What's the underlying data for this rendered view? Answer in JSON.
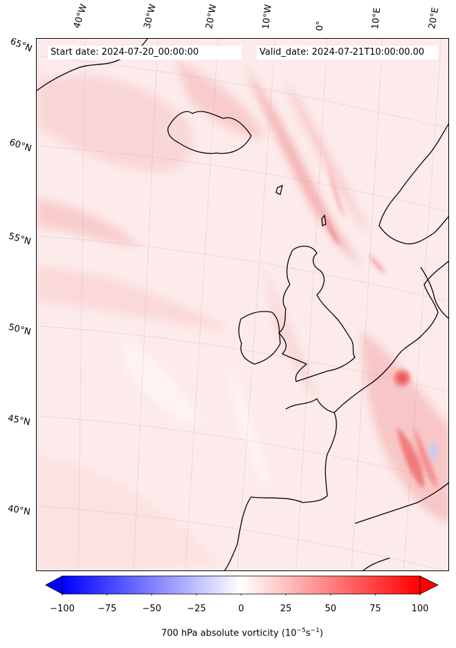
{
  "header": {
    "start_date": "Start date: 2024-07-20_00:00:00",
    "valid_date": "Valid_date: 2024-07-21T10:00:00.00"
  },
  "map": {
    "lon_labels": [
      "40°W",
      "30°W",
      "20°W",
      "10°W",
      "0°",
      "10°E",
      "20°E"
    ],
    "lat_labels": [
      "65°N",
      "60°N",
      "55°N",
      "50°N",
      "45°N",
      "40°N"
    ],
    "field": "700 hPa absolute vorticity",
    "colormap": "bwr",
    "background_color": "#fdeaea",
    "coastline_color": "#000000"
  },
  "colorbar": {
    "min": -100,
    "max": 100,
    "ticks": [
      "−100",
      "−75",
      "−50",
      "−25",
      "0",
      "25",
      "50",
      "75",
      "100"
    ],
    "label_main": "700 hPa absolute vorticity (10",
    "label_exp1": "−5",
    "label_mid": "s",
    "label_exp2": "−1",
    "label_end": ")",
    "extend": "both"
  }
}
